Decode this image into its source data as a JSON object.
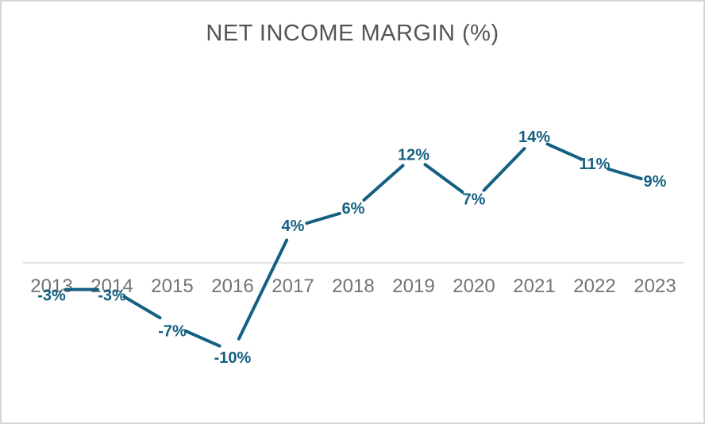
{
  "chart_data": {
    "type": "line",
    "title": "NET INCOME MARGIN (%)",
    "categories": [
      "2013",
      "2014",
      "2015",
      "2016",
      "2017",
      "2018",
      "2019",
      "2020",
      "2021",
      "2022",
      "2023"
    ],
    "values": [
      -3,
      -3,
      -7,
      -10,
      4,
      6,
      12,
      7,
      14,
      11,
      9
    ],
    "labels": [
      "-3%",
      "-3%",
      "-7%",
      "-10%",
      "4%",
      "6%",
      "12%",
      "7%",
      "14%",
      "11%",
      "9%"
    ],
    "xlabel": "",
    "ylabel": "",
    "ylim": [
      -14,
      17
    ],
    "legend": "none",
    "grid": "zero-line-only",
    "data_labels": "shown",
    "y_axis": "hidden",
    "colors": {
      "line": "#156082",
      "data_label": "#156082",
      "title": "#555555",
      "axis_label": "#737373",
      "gridline": "#d9d9d9",
      "frame_border": "#d6d6d6",
      "background": "#ffffff"
    }
  }
}
